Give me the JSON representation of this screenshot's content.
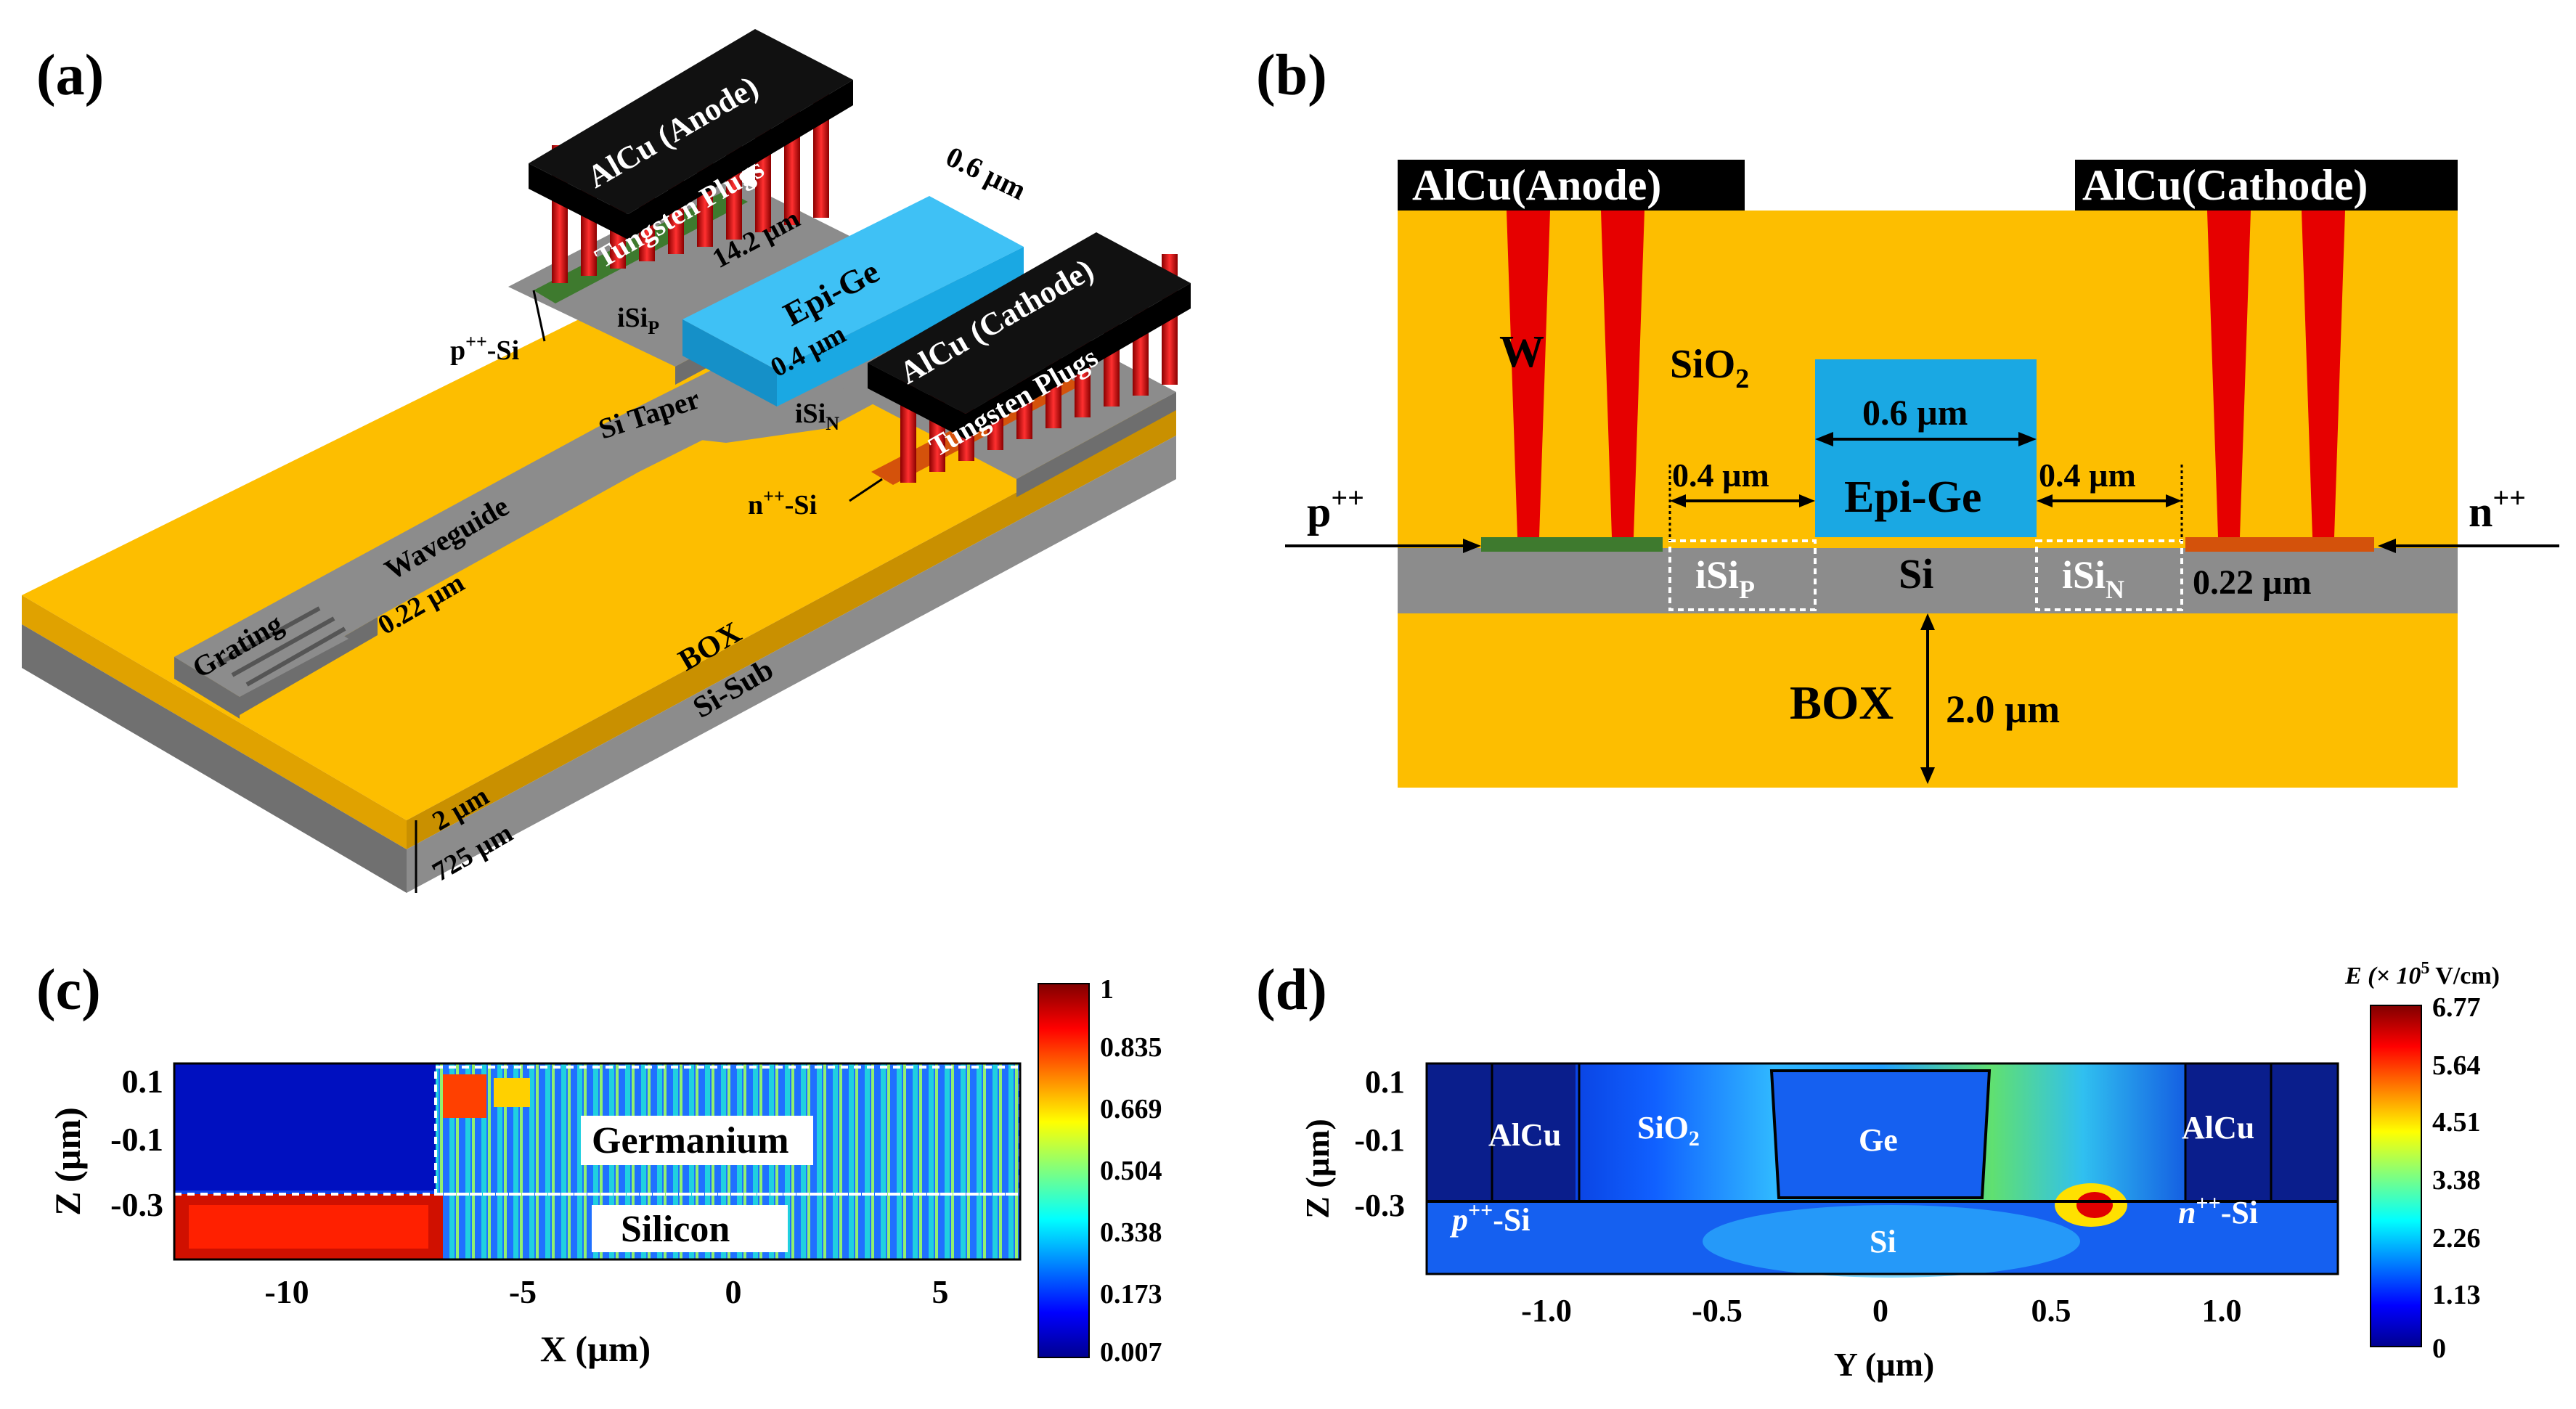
{
  "colors": {
    "oxide": "#FDBE00",
    "silicon": "#8C8C8C",
    "germanium": "#1AA8E3",
    "metal": "#000000",
    "tungsten": "#E60000",
    "p_doped": "#3E7A2E",
    "n_doped": "#D4520B"
  },
  "panel_a": {
    "label": "(a)",
    "anode": "AlCu (Anode)",
    "cathode": "AlCu (Cathode)",
    "plugs": "Tungsten Plugs",
    "plugs_2": "Tungsten Plugs",
    "epi_ge": "Epi-Ge",
    "ge_width": "0.6 µm",
    "length": "14.2 µm",
    "gap": "0.4 µm",
    "isi_p": "iSi",
    "isi_p_sub": "P",
    "isi_n": "iSi",
    "isi_n_sub": "N",
    "p_si": "p",
    "p_si_sup": "++",
    "p_si_end": "-Si",
    "n_si": "n",
    "n_si_sup": "++",
    "n_si_end": "-Si",
    "taper": "Si Taper",
    "waveguide": "Waveguide",
    "thickness": "0.22 µm",
    "grating": "Grating",
    "box": "BOX",
    "sub": "Si-Sub",
    "box_t": "2 µm",
    "sub_t": "725 µm"
  },
  "panel_b": {
    "label": "(b)",
    "anode": "AlCu(Anode)",
    "cathode": "AlCu(Cathode)",
    "w": "W",
    "sio2": "SiO",
    "sio2_sub": "2",
    "ge_w": "0.6 µm",
    "epi_ge": "Epi-Ge",
    "gap_l": "0.4 µm",
    "gap_r": "0.4 µm",
    "p": "p",
    "p_sup": "++",
    "n": "n",
    "n_sup": "++",
    "isi_p": "iSi",
    "isi_p_sub": "P",
    "si": "Si",
    "isi_n": "iSi",
    "isi_n_sub": "N",
    "si_t": "0.22 µm",
    "box": "BOX",
    "box_t": "2.0 µm"
  },
  "panel_c": {
    "label": "(c)",
    "germanium": "Germanium",
    "silicon": "Silicon",
    "xlabel": "X (µm)",
    "ylabel": "Z (µm)",
    "xticks": [
      "-10",
      "-5",
      "0",
      "5"
    ],
    "yticks": [
      "0.1",
      "-0.1",
      "-0.3"
    ],
    "cbar": [
      "1",
      "0.835",
      "0.669",
      "0.504",
      "0.338",
      "0.173",
      "0.007"
    ]
  },
  "panel_d": {
    "label": "(d)",
    "cbar_title": "E (× 10",
    "cbar_title_sup": "5",
    "cbar_title_end": " V/cm)",
    "alcu_l": "AlCu",
    "alcu_r": "AlCu",
    "sio2": "SiO",
    "sio2_sub": "2",
    "ge": "Ge",
    "si": "Si",
    "p_si": "p",
    "p_si_sup": "++",
    "p_si_end": "-Si",
    "n_si": "n",
    "n_si_sup": "++",
    "n_si_end": "-Si",
    "xlabel": "Y (µm)",
    "ylabel": "Z (µm)",
    "xticks": [
      "-1.0",
      "-0.5",
      "0",
      "0.5",
      "1.0"
    ],
    "yticks": [
      "0.1",
      "-0.1",
      "-0.3"
    ],
    "cbar": [
      "6.77",
      "5.64",
      "4.51",
      "3.38",
      "2.26",
      "1.13",
      "0"
    ]
  }
}
